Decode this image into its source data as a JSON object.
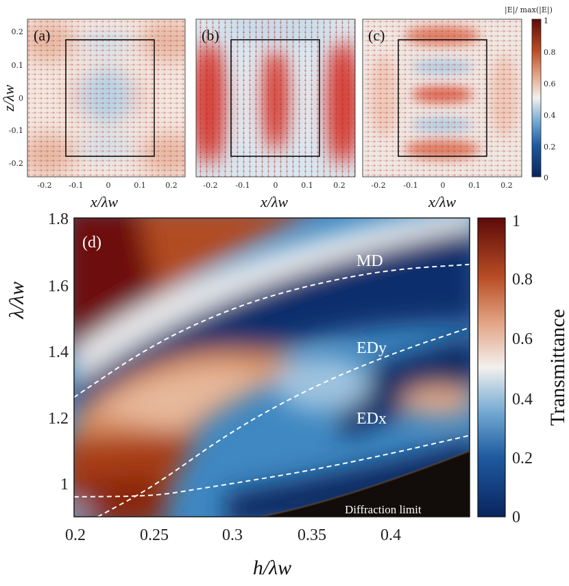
{
  "colors": {
    "dark_blue": "#0b2a66",
    "mid_blue": "#2f74b5",
    "light_blue": "#a9cde4",
    "white": "#f4f1ee",
    "light_red": "#e8b8a0",
    "orange": "#c1662e",
    "dark_red": "#6a0c0b"
  },
  "chart_data": [
    {
      "type": "heatmap",
      "panel": "(a)",
      "description_key": "field map",
      "xlabel": "x/λw",
      "ylabel": "z/λw",
      "xlim": [
        -0.25,
        0.25
      ],
      "ylim": [
        -0.225,
        0.225
      ],
      "xticks": [
        "-0.2",
        "-0.1",
        "0",
        "0.1",
        "0.2"
      ],
      "yticks": [
        "0.2",
        "0.1",
        "0",
        "-0.1",
        "-0.2"
      ],
      "box": {
        "x": [
          -0.135,
          0.135
        ],
        "z": [
          -0.175,
          0.175
        ]
      }
    },
    {
      "type": "heatmap",
      "panel": "(b)",
      "xlabel": "x/λw",
      "xlim": [
        -0.25,
        0.25
      ],
      "ylim": [
        -0.225,
        0.225
      ],
      "xticks": [
        "-0.2",
        "-0.1",
        "0",
        "0.1",
        "0.2"
      ],
      "box": {
        "x": [
          -0.135,
          0.135
        ],
        "z": [
          -0.175,
          0.175
        ]
      }
    },
    {
      "type": "heatmap",
      "panel": "(c)",
      "xlabel": "x/λw",
      "xlim": [
        -0.25,
        0.25
      ],
      "ylim": [
        -0.225,
        0.225
      ],
      "xticks": [
        "-0.2",
        "-0.1",
        "0",
        "0.1",
        "0.2"
      ],
      "box": {
        "x": [
          -0.135,
          0.135
        ],
        "z": [
          -0.175,
          0.175
        ]
      },
      "colorbar": {
        "label": "|E|/ max(|E|)",
        "ticks": [
          "1",
          "0.8",
          "0.6",
          "0.4",
          "0.2",
          "0"
        ],
        "range": [
          0,
          1
        ]
      }
    },
    {
      "type": "heatmap",
      "panel": "(d)",
      "xlabel": "h/λw",
      "ylabel": "λ/λw",
      "xlim": [
        0.2,
        0.45
      ],
      "ylim": [
        0.9,
        1.8
      ],
      "xticks": [
        "0.2",
        "0.25",
        "0.3",
        "0.35",
        "0.4"
      ],
      "yticks": [
        "1.8",
        "1.6",
        "1.4",
        "1.2",
        "1"
      ],
      "colorbar": {
        "label": "Transmittance",
        "ticks": [
          "1",
          "0.8",
          "0.6",
          "0.4",
          "0.2",
          "0"
        ],
        "range": [
          0,
          1
        ]
      },
      "annotations": [
        "MD",
        "EDy",
        "EDx",
        "Diffraction limit"
      ],
      "series": [
        {
          "name": "MD",
          "x": [
            0.2,
            0.25,
            0.3,
            0.35,
            0.4,
            0.45
          ],
          "y": [
            1.26,
            1.42,
            1.53,
            1.6,
            1.645,
            1.66
          ]
        },
        {
          "name": "EDy",
          "x": [
            0.215,
            0.25,
            0.3,
            0.35,
            0.4,
            0.45
          ],
          "y": [
            0.9,
            0.99,
            1.16,
            1.29,
            1.39,
            1.47
          ]
        },
        {
          "name": "EDx",
          "x": [
            0.2,
            0.25,
            0.28,
            0.3,
            0.35,
            0.4,
            0.45
          ],
          "y": [
            0.96,
            0.962,
            0.985,
            1.0,
            1.04,
            1.09,
            1.145
          ]
        },
        {
          "name": "Diffraction limit",
          "x": [
            0.31,
            0.35,
            0.4,
            0.45
          ],
          "y": [
            0.9,
            0.92,
            0.99,
            1.11
          ]
        }
      ]
    }
  ]
}
